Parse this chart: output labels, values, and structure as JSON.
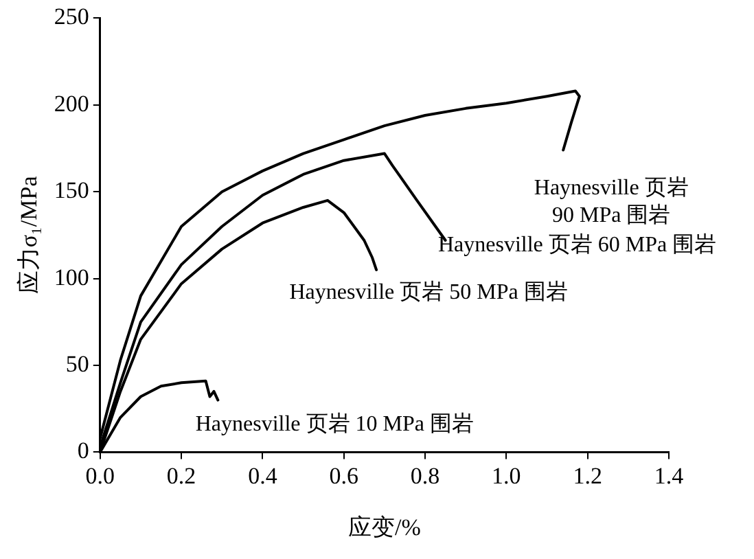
{
  "chart_data": {
    "type": "line",
    "xlabel": "应变/%",
    "ylabel": "应力σ₁/MPa",
    "xlim": [
      0,
      1.4
    ],
    "ylim": [
      0,
      250
    ],
    "xticks": [
      {
        "value": 0,
        "label": "0.0"
      },
      {
        "value": 0.2,
        "label": "0.2"
      },
      {
        "value": 0.4,
        "label": "0.4"
      },
      {
        "value": 0.6,
        "label": "0.6"
      },
      {
        "value": 0.8,
        "label": "0.8"
      },
      {
        "value": 1,
        "label": "1.0"
      },
      {
        "value": 1.2,
        "label": "1.2"
      },
      {
        "value": 1.4,
        "label": "1.4"
      }
    ],
    "yticks": [
      0,
      50,
      100,
      150,
      200,
      250
    ],
    "grid": false,
    "legend": false,
    "marker": "none",
    "line_style": "solid",
    "series": [
      {
        "name": "Haynesville 页岩\n90 MPa 围岩",
        "color": "#000000",
        "x": [
          0,
          0.05,
          0.1,
          0.2,
          0.3,
          0.4,
          0.5,
          0.6,
          0.7,
          0.8,
          0.9,
          1.0,
          1.1,
          1.17,
          1.18,
          1.16,
          1.14
        ],
        "values": [
          8,
          53,
          90,
          130,
          150,
          162,
          172,
          180,
          188,
          194,
          198,
          201,
          205,
          208,
          205,
          190,
          174
        ]
      },
      {
        "name": "Haynesville 页岩 60 MPa 围岩",
        "color": "#000000",
        "x": [
          0,
          0.05,
          0.1,
          0.2,
          0.3,
          0.4,
          0.5,
          0.6,
          0.7,
          0.72,
          0.78,
          0.85
        ],
        "values": [
          3,
          40,
          75,
          108,
          130,
          148,
          160,
          168,
          172,
          165,
          145,
          122
        ]
      },
      {
        "name": "Haynesville 页岩 50 MPa 围岩",
        "color": "#000000",
        "x": [
          0,
          0.05,
          0.1,
          0.2,
          0.3,
          0.4,
          0.5,
          0.56,
          0.6,
          0.65,
          0.67,
          0.68
        ],
        "values": [
          0,
          35,
          65,
          97,
          117,
          132,
          141,
          145,
          138,
          122,
          112,
          105
        ]
      },
      {
        "name": "Haynesville 页岩 10 MPa 围岩",
        "color": "#000000",
        "x": [
          0,
          0.05,
          0.1,
          0.15,
          0.2,
          0.26,
          0.27,
          0.28,
          0.29
        ],
        "values": [
          0,
          20,
          32,
          38,
          40,
          41,
          32,
          35,
          30
        ]
      }
    ]
  }
}
